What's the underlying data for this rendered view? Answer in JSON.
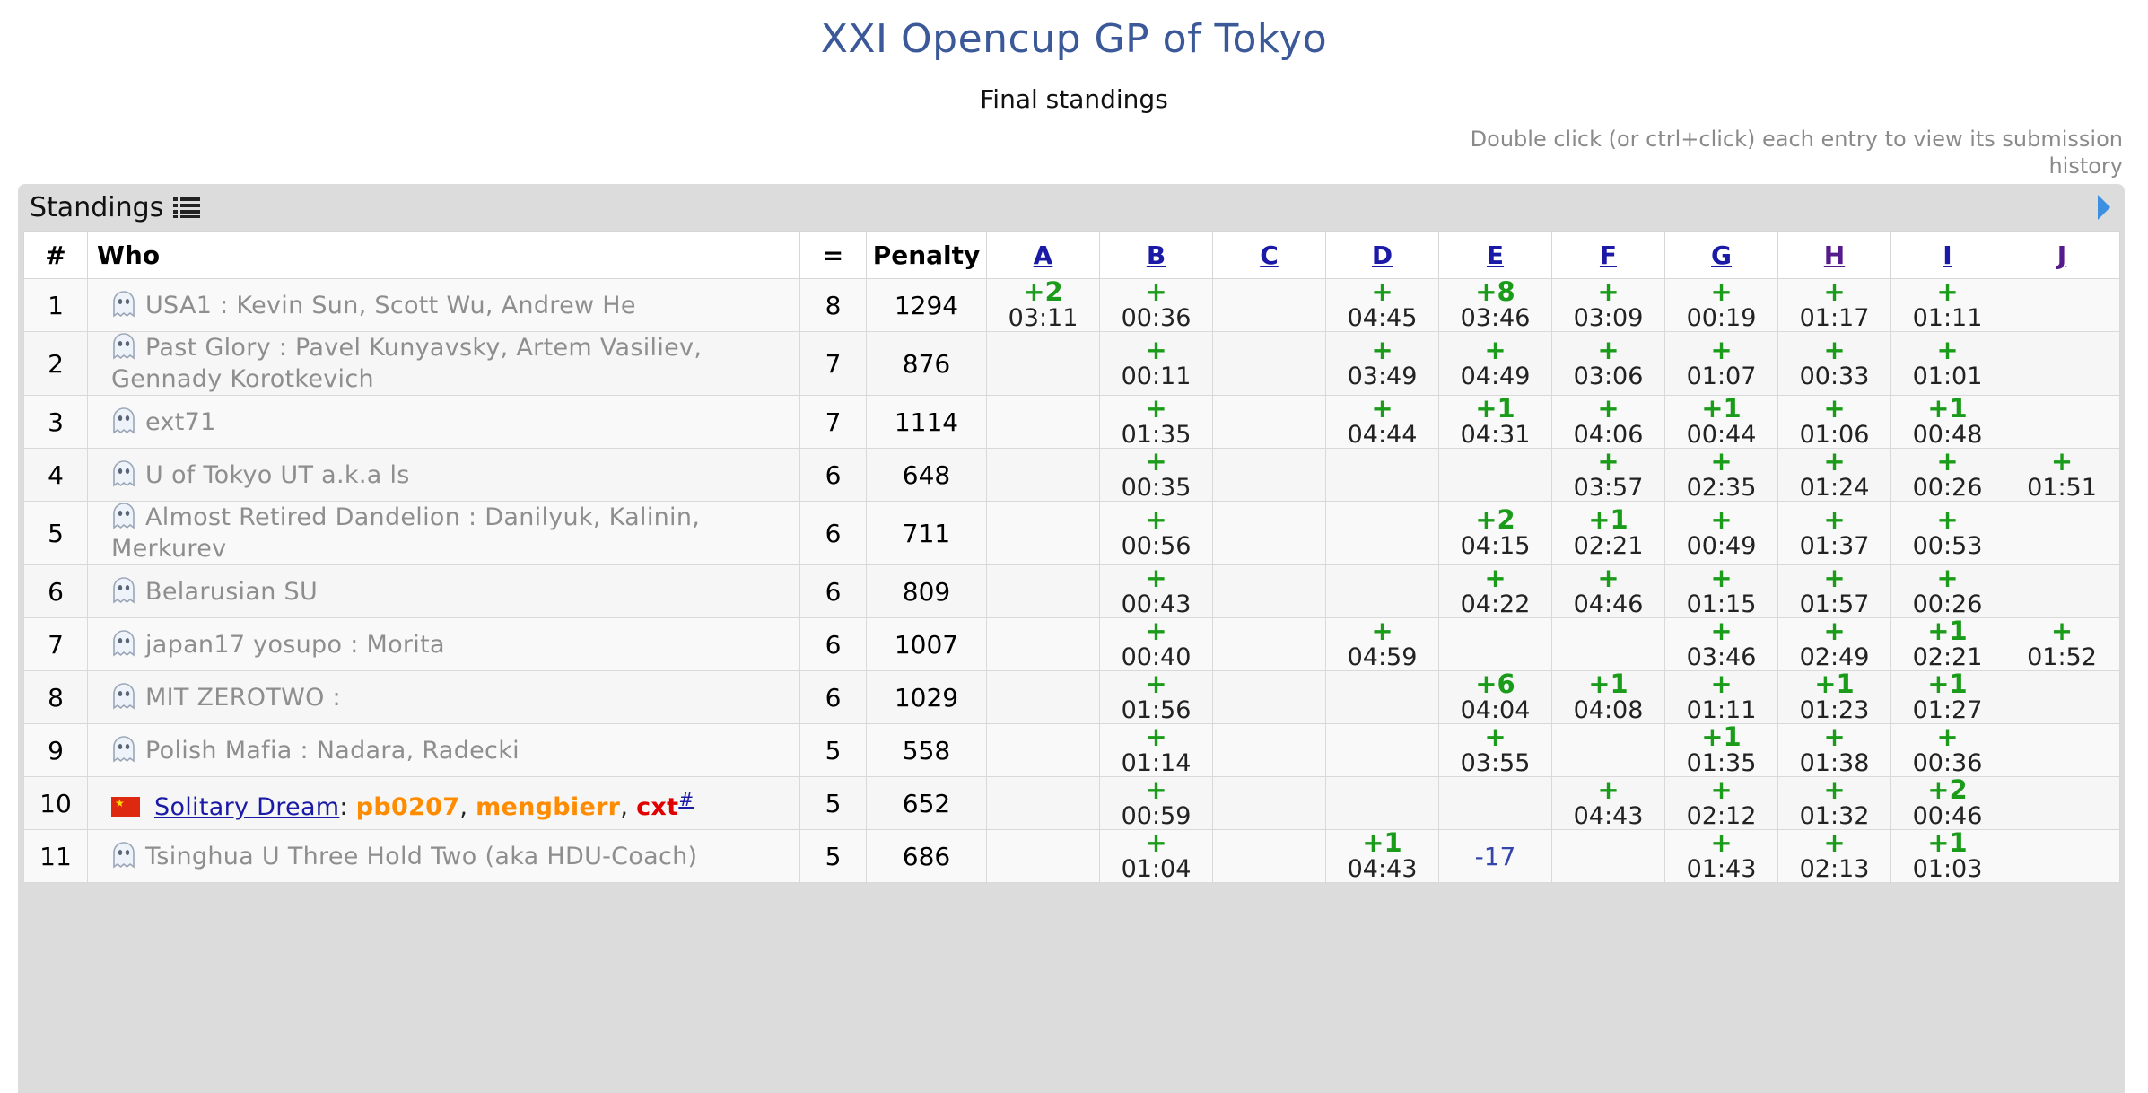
{
  "title": "XXI Opencup GP of Tokyo",
  "subtitle": "Final standings",
  "hint": "Double click (or ctrl+click) each entry to view its submission history",
  "panel": {
    "title": "Standings"
  },
  "headers": {
    "rank": "#",
    "who": "Who",
    "solved": "=",
    "penalty": "Penalty",
    "problems": [
      "A",
      "B",
      "C",
      "D",
      "E",
      "F",
      "G",
      "H",
      "I",
      "J"
    ]
  },
  "colors": {
    "title": "#3b5998",
    "accepted": "#1a9c1a",
    "rejected": "#3344aa",
    "team_name": "#8e8e8e"
  },
  "rows": [
    {
      "rank": "1",
      "who": "USA1 : Kevin Sun, Scott Wu, Andrew He",
      "solved": "8",
      "penalty": "1294",
      "cells": [
        {
          "s": "+2",
          "t": "03:11"
        },
        {
          "s": "+",
          "t": "00:36"
        },
        null,
        {
          "s": "+",
          "t": "04:45"
        },
        {
          "s": "+8",
          "t": "03:46"
        },
        {
          "s": "+",
          "t": "03:09"
        },
        {
          "s": "+",
          "t": "00:19"
        },
        {
          "s": "+",
          "t": "01:17"
        },
        {
          "s": "+",
          "t": "01:11"
        },
        null
      ]
    },
    {
      "rank": "2",
      "who": "Past Glory : Pavel Kunyavsky, Artem Vasiliev, Gennady Korotkevich",
      "solved": "7",
      "penalty": "876",
      "cells": [
        null,
        {
          "s": "+",
          "t": "00:11"
        },
        null,
        {
          "s": "+",
          "t": "03:49"
        },
        {
          "s": "+",
          "t": "04:49"
        },
        {
          "s": "+",
          "t": "03:06"
        },
        {
          "s": "+",
          "t": "01:07"
        },
        {
          "s": "+",
          "t": "00:33"
        },
        {
          "s": "+",
          "t": "01:01"
        },
        null
      ]
    },
    {
      "rank": "3",
      "who": "ext71",
      "solved": "7",
      "penalty": "1114",
      "cells": [
        null,
        {
          "s": "+",
          "t": "01:35"
        },
        null,
        {
          "s": "+",
          "t": "04:44"
        },
        {
          "s": "+1",
          "t": "04:31"
        },
        {
          "s": "+",
          "t": "04:06"
        },
        {
          "s": "+1",
          "t": "00:44"
        },
        {
          "s": "+",
          "t": "01:06"
        },
        {
          "s": "+1",
          "t": "00:48"
        },
        null
      ]
    },
    {
      "rank": "4",
      "who": "U of Tokyo UT a.k.a ls",
      "solved": "6",
      "penalty": "648",
      "cells": [
        null,
        {
          "s": "+",
          "t": "00:35"
        },
        null,
        null,
        null,
        {
          "s": "+",
          "t": "03:57"
        },
        {
          "s": "+",
          "t": "02:35"
        },
        {
          "s": "+",
          "t": "01:24"
        },
        {
          "s": "+",
          "t": "00:26"
        },
        {
          "s": "+",
          "t": "01:51"
        }
      ]
    },
    {
      "rank": "5",
      "who": "Almost Retired Dandelion : Danilyuk, Kalinin, Merkurev",
      "solved": "6",
      "penalty": "711",
      "cells": [
        null,
        {
          "s": "+",
          "t": "00:56"
        },
        null,
        null,
        {
          "s": "+2",
          "t": "04:15"
        },
        {
          "s": "+1",
          "t": "02:21"
        },
        {
          "s": "+",
          "t": "00:49"
        },
        {
          "s": "+",
          "t": "01:37"
        },
        {
          "s": "+",
          "t": "00:53"
        },
        null
      ]
    },
    {
      "rank": "6",
      "who": "Belarusian SU",
      "solved": "6",
      "penalty": "809",
      "cells": [
        null,
        {
          "s": "+",
          "t": "00:43"
        },
        null,
        null,
        {
          "s": "+",
          "t": "04:22"
        },
        {
          "s": "+",
          "t": "04:46"
        },
        {
          "s": "+",
          "t": "01:15"
        },
        {
          "s": "+",
          "t": "01:57"
        },
        {
          "s": "+",
          "t": "00:26"
        },
        null
      ]
    },
    {
      "rank": "7",
      "who": "japan17 yosupo : Morita",
      "solved": "6",
      "penalty": "1007",
      "cells": [
        null,
        {
          "s": "+",
          "t": "00:40"
        },
        null,
        {
          "s": "+",
          "t": "04:59"
        },
        null,
        null,
        {
          "s": "+",
          "t": "03:46"
        },
        {
          "s": "+",
          "t": "02:49"
        },
        {
          "s": "+1",
          "t": "02:21"
        },
        {
          "s": "+",
          "t": "01:52"
        }
      ]
    },
    {
      "rank": "8",
      "who": "MIT ZEROTWO :",
      "solved": "6",
      "penalty": "1029",
      "cells": [
        null,
        {
          "s": "+",
          "t": "01:56"
        },
        null,
        null,
        {
          "s": "+6",
          "t": "04:04"
        },
        {
          "s": "+1",
          "t": "04:08"
        },
        {
          "s": "+",
          "t": "01:11"
        },
        {
          "s": "+1",
          "t": "01:23"
        },
        {
          "s": "+1",
          "t": "01:27"
        },
        null
      ]
    },
    {
      "rank": "9",
      "who": "Polish Mafia : Nadara, Radecki",
      "solved": "5",
      "penalty": "558",
      "cells": [
        null,
        {
          "s": "+",
          "t": "01:14"
        },
        null,
        null,
        {
          "s": "+",
          "t": "03:55"
        },
        null,
        {
          "s": "+1",
          "t": "01:35"
        },
        {
          "s": "+",
          "t": "01:38"
        },
        {
          "s": "+",
          "t": "00:36"
        },
        null
      ]
    },
    {
      "rank": "10",
      "team": "Solitary Dream",
      "sep": ": ",
      "m1": "pb0207",
      "m2": "mengbierr",
      "m3": "cxt",
      "c": ", ",
      "hash": "#",
      "solved": "5",
      "penalty": "652",
      "cells": [
        null,
        {
          "s": "+",
          "t": "00:59"
        },
        null,
        null,
        null,
        {
          "s": "+",
          "t": "04:43"
        },
        {
          "s": "+",
          "t": "02:12"
        },
        {
          "s": "+",
          "t": "01:32"
        },
        {
          "s": "+2",
          "t": "00:46"
        },
        null
      ]
    },
    {
      "rank": "11",
      "who": "Tsinghua U Three Hold Two (aka HDU-Coach)",
      "solved": "5",
      "penalty": "686",
      "cells": [
        null,
        {
          "s": "+",
          "t": "01:04"
        },
        null,
        {
          "s": "+1",
          "t": "04:43"
        },
        {
          "r": "-17"
        },
        null,
        {
          "s": "+",
          "t": "01:43"
        },
        {
          "s": "+",
          "t": "02:13"
        },
        {
          "s": "+1",
          "t": "01:03"
        },
        null
      ]
    }
  ]
}
